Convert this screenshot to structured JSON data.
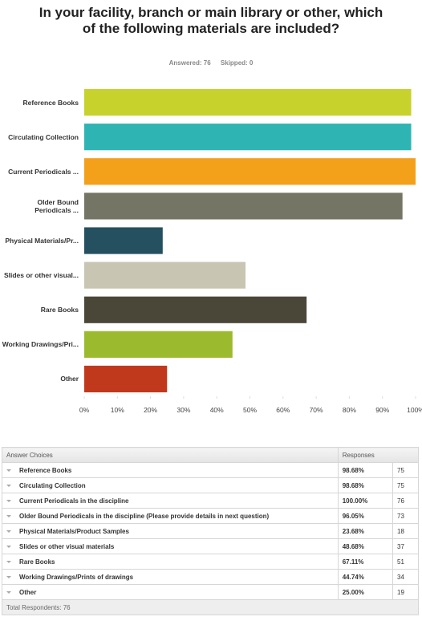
{
  "chart_data": {
    "type": "bar",
    "orientation": "horizontal",
    "title": "In your facility, branch or main library or other, which of the following materials are included?",
    "categories": [
      "Reference Books",
      "Circulating Collection",
      "Current Periodicals ...",
      "Older Bound Periodicals ...",
      "Physical Materials/Pr...",
      "Slides or other visual...",
      "Rare Books",
      "Working Drawings/Pri...",
      "Other"
    ],
    "values": [
      98.68,
      98.68,
      100,
      96.05,
      23.68,
      48.68,
      67.11,
      44.74,
      25.0
    ],
    "colors": [
      "#c7d22c",
      "#2fb4b4",
      "#f3a01b",
      "#747564",
      "#24505f",
      "#c9c5b3",
      "#4a4739",
      "#9cba2e",
      "#c1391c"
    ],
    "xlim": [
      0,
      100
    ],
    "xticks": [
      {
        "value": 0,
        "label": "0%"
      },
      {
        "value": 10,
        "label": "10%"
      },
      {
        "value": 20,
        "label": "20%"
      },
      {
        "value": 30,
        "label": "30%"
      },
      {
        "value": 40,
        "label": "40%"
      },
      {
        "value": 50,
        "label": "50%"
      },
      {
        "value": 60,
        "label": "60%"
      },
      {
        "value": 70,
        "label": "70%"
      },
      {
        "value": 80,
        "label": "80%"
      },
      {
        "value": 90,
        "label": "90%"
      },
      {
        "value": 100,
        "label": "100%"
      }
    ]
  },
  "summary": {
    "answered": "Answered: 76",
    "skipped": "Skipped: 0"
  },
  "table": {
    "header": [
      "Answer Choices",
      "Responses"
    ],
    "rows": [
      [
        "Reference Books",
        "98.68%",
        "75"
      ],
      [
        "Circulating Collection",
        "98.68%",
        "75"
      ],
      [
        "Current Periodicals in the discipline",
        "100.00%",
        "76"
      ],
      [
        "Older Bound Periodicals in the discipline (Please provide details in next question)",
        "96.05%",
        "73"
      ],
      [
        "Physical Materials/Product Samples",
        "23.68%",
        "18"
      ],
      [
        "Slides or other visual materials",
        "48.68%",
        "37"
      ],
      [
        "Rare Books",
        "67.11%",
        "51"
      ],
      [
        "Working Drawings/Prints of drawings",
        "44.74%",
        "34"
      ],
      [
        "Other",
        "25.00%",
        "19"
      ]
    ],
    "footer": "Total Respondents: 76"
  }
}
